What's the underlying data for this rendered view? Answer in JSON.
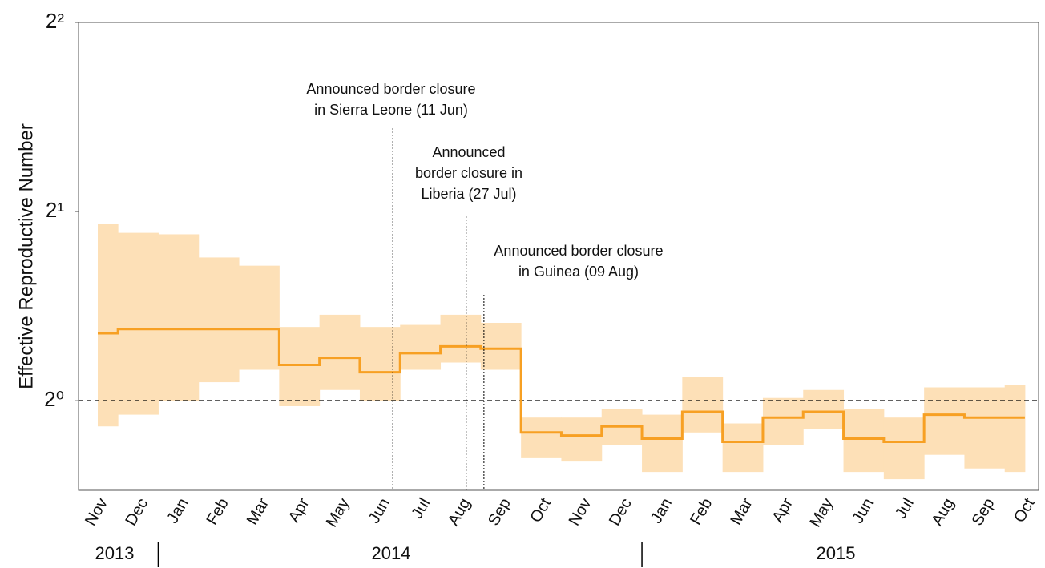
{
  "chart_data": {
    "type": "step-band",
    "ylabel": "Effective Reproductive Number",
    "categories": [
      "Nov",
      "Dec",
      "Jan",
      "Feb",
      "Mar",
      "Apr",
      "May",
      "Jun",
      "Jul",
      "Aug",
      "Sep",
      "Oct",
      "Nov",
      "Dec",
      "Jan",
      "Feb",
      "Mar",
      "Apr",
      "May",
      "Jun",
      "Jul",
      "Aug",
      "Sep",
      "Oct"
    ],
    "values": [
      1.28,
      1.3,
      1.3,
      1.3,
      1.3,
      1.14,
      1.17,
      1.11,
      1.19,
      1.22,
      1.21,
      0.89,
      0.88,
      0.91,
      0.87,
      0.96,
      0.86,
      0.94,
      0.96,
      0.87,
      0.86,
      0.95,
      0.94,
      0.94
    ],
    "upper": [
      1.91,
      1.85,
      1.84,
      1.69,
      1.64,
      1.31,
      1.37,
      1.31,
      1.32,
      1.37,
      1.33,
      0.94,
      0.94,
      0.97,
      0.95,
      1.09,
      0.92,
      1.01,
      1.04,
      0.97,
      0.94,
      1.05,
      1.05,
      1.06
    ],
    "lower": [
      0.91,
      0.95,
      1.0,
      1.07,
      1.12,
      0.98,
      1.04,
      1.0,
      1.12,
      1.15,
      1.12,
      0.81,
      0.8,
      0.85,
      0.77,
      0.89,
      0.77,
      0.85,
      0.9,
      0.77,
      0.75,
      0.82,
      0.78,
      0.77
    ],
    "color": "#f7a023",
    "band_color": "#fde0b7",
    "log_base": 2,
    "ylim": [
      0.72,
      4
    ],
    "yticks": [
      {
        "value": 1,
        "label": "2⁰"
      },
      {
        "value": 2,
        "label": "2¹"
      },
      {
        "value": 4,
        "label": "2²"
      }
    ],
    "reference_line": 1,
    "years": [
      "2013",
      "2014",
      "2015"
    ],
    "annotations": [
      {
        "x": 7.32,
        "text": [
          "Announced border closure",
          "in Sierra Leone (11 Jun)"
        ]
      },
      {
        "x": 9.14,
        "text": [
          "Announced",
          "border closure in",
          "Liberia (27 Jul)"
        ]
      },
      {
        "x": 9.58,
        "text": [
          "Announced border closure",
          "in Guinea (09 Aug)"
        ]
      }
    ]
  }
}
